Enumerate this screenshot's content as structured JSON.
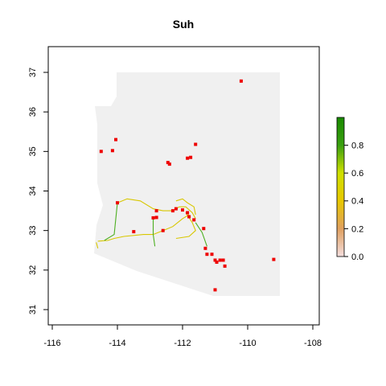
{
  "title": "Suh",
  "colors": {
    "state_fill": "#f0f0f0",
    "point": "#ee0000",
    "path_yellow": "#d8c700",
    "path_green": "#4caf20"
  },
  "chart_data": {
    "type": "raster-map",
    "title": "Suh",
    "xlim": [
      -116,
      -108
    ],
    "ylim": [
      31,
      37
    ],
    "x_ticks": [
      -116,
      -114,
      -112,
      -110,
      -108
    ],
    "y_ticks": [
      31,
      32,
      33,
      34,
      35,
      36,
      37
    ],
    "x_tick_labels": [
      "-116",
      "-114",
      "-112",
      "-110",
      "-108"
    ],
    "y_tick_labels": [
      "31",
      "32",
      "33",
      "34",
      "35",
      "36",
      "37"
    ],
    "legend": {
      "position": "right",
      "ticks": [
        0.0,
        0.2,
        0.4,
        0.6,
        0.8
      ],
      "tick_labels": [
        "0.0",
        "0.2",
        "0.4",
        "0.6",
        "0.8"
      ],
      "range": [
        0,
        1
      ],
      "gradient": [
        "#f4dede",
        "#e0a060",
        "#e8c800",
        "#cfe000",
        "#3aa010",
        "#1a8a00"
      ]
    },
    "points": [
      {
        "lon": -110.2,
        "lat": 36.78
      },
      {
        "lon": -114.5,
        "lat": 35.0
      },
      {
        "lon": -114.05,
        "lat": 35.3
      },
      {
        "lon": -114.15,
        "lat": 35.02
      },
      {
        "lon": -111.6,
        "lat": 35.18
      },
      {
        "lon": -111.85,
        "lat": 34.83
      },
      {
        "lon": -111.75,
        "lat": 34.85
      },
      {
        "lon": -112.45,
        "lat": 34.72
      },
      {
        "lon": -112.4,
        "lat": 34.68
      },
      {
        "lon": -114.0,
        "lat": 33.7
      },
      {
        "lon": -113.5,
        "lat": 32.97
      },
      {
        "lon": -112.9,
        "lat": 33.32
      },
      {
        "lon": -112.8,
        "lat": 33.33
      },
      {
        "lon": -112.8,
        "lat": 33.5
      },
      {
        "lon": -112.3,
        "lat": 33.5
      },
      {
        "lon": -112.2,
        "lat": 33.55
      },
      {
        "lon": -112.0,
        "lat": 33.52
      },
      {
        "lon": -111.8,
        "lat": 33.35
      },
      {
        "lon": -111.85,
        "lat": 33.45
      },
      {
        "lon": -111.65,
        "lat": 33.27
      },
      {
        "lon": -112.6,
        "lat": 33.0
      },
      {
        "lon": -111.35,
        "lat": 33.05
      },
      {
        "lon": -111.3,
        "lat": 32.55
      },
      {
        "lon": -111.25,
        "lat": 32.4
      },
      {
        "lon": -111.1,
        "lat": 32.4
      },
      {
        "lon": -111.0,
        "lat": 32.25
      },
      {
        "lon": -110.95,
        "lat": 32.2
      },
      {
        "lon": -110.85,
        "lat": 32.25
      },
      {
        "lon": -110.75,
        "lat": 32.25
      },
      {
        "lon": -110.7,
        "lat": 32.1
      },
      {
        "lon": -111.0,
        "lat": 31.5
      },
      {
        "lon": -109.2,
        "lat": 32.27
      }
    ],
    "paths": [
      {
        "color": "path_yellow",
        "points": [
          [
            -114.6,
            32.73
          ],
          [
            -114.3,
            32.75
          ],
          [
            -114.1,
            32.8
          ],
          [
            -113.8,
            32.85
          ],
          [
            -113.2,
            32.9
          ],
          [
            -112.9,
            32.9
          ],
          [
            -112.6,
            33.0
          ],
          [
            -112.3,
            33.1
          ],
          [
            -112.0,
            33.3
          ],
          [
            -111.8,
            33.4
          ]
        ]
      },
      {
        "color": "path_yellow",
        "points": [
          [
            -114.0,
            33.7
          ],
          [
            -113.7,
            33.8
          ],
          [
            -113.3,
            33.75
          ],
          [
            -112.9,
            33.55
          ],
          [
            -112.6,
            33.5
          ],
          [
            -112.3,
            33.5
          ],
          [
            -112.1,
            33.6
          ],
          [
            -111.9,
            33.6
          ],
          [
            -111.7,
            33.45
          ],
          [
            -111.6,
            33.3
          ]
        ]
      },
      {
        "color": "path_green",
        "points": [
          [
            -114.0,
            33.7
          ],
          [
            -114.05,
            33.3
          ],
          [
            -114.1,
            32.9
          ],
          [
            -114.4,
            32.75
          ]
        ]
      },
      {
        "color": "path_yellow",
        "points": [
          [
            -111.9,
            33.45
          ],
          [
            -111.7,
            33.2
          ],
          [
            -111.6,
            33.0
          ],
          [
            -111.8,
            32.85
          ],
          [
            -112.2,
            32.8
          ]
        ]
      },
      {
        "color": "path_green",
        "points": [
          [
            -112.9,
            33.35
          ],
          [
            -112.9,
            32.9
          ],
          [
            -112.85,
            32.6
          ]
        ]
      },
      {
        "color": "path_yellow",
        "points": [
          [
            -112.2,
            33.75
          ],
          [
            -112.0,
            33.8
          ],
          [
            -111.85,
            33.7
          ],
          [
            -111.65,
            33.6
          ],
          [
            -111.6,
            33.4
          ]
        ]
      },
      {
        "color": "path_green",
        "points": [
          [
            -111.6,
            33.2
          ],
          [
            -111.4,
            32.95
          ],
          [
            -111.25,
            32.6
          ]
        ]
      },
      {
        "color": "path_yellow",
        "points": [
          [
            -114.65,
            32.7
          ],
          [
            -114.6,
            32.55
          ]
        ]
      }
    ]
  }
}
